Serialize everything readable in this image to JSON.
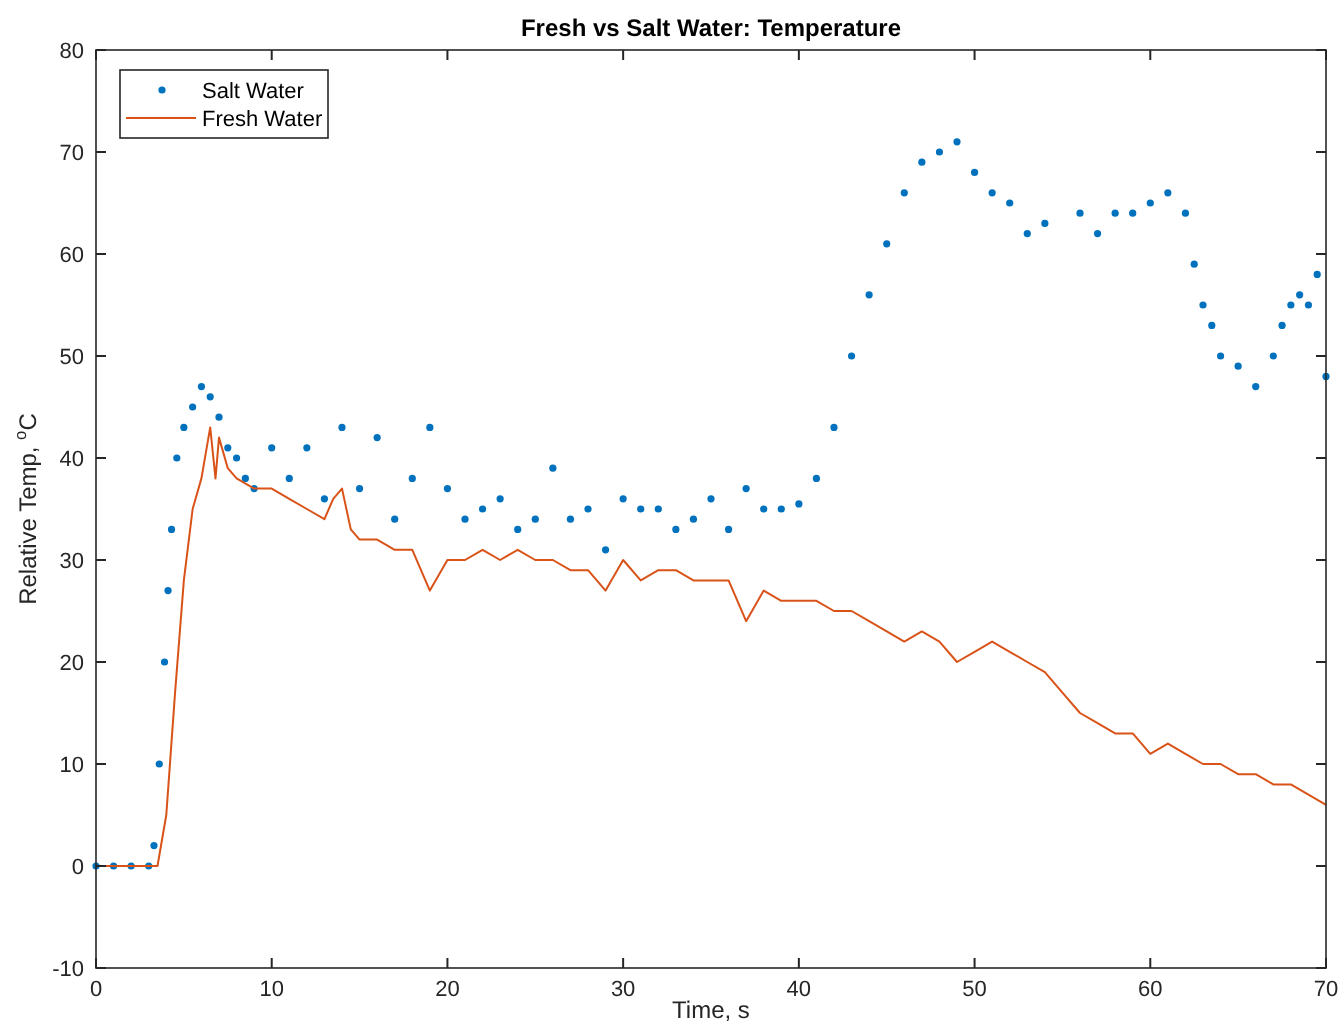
{
  "chart_data": {
    "type": "line",
    "title": "Fresh vs Salt Water: Temperature",
    "xlabel": "Time, s",
    "ylabel": "Relative Temp, $^{o}$C",
    "xlim": [
      0,
      70
    ],
    "xticks": [
      0,
      10,
      20,
      30,
      40,
      50,
      60,
      70
    ],
    "ylim": [
      -10,
      80
    ],
    "yticks": [
      -10,
      0,
      10,
      20,
      30,
      40,
      50,
      60,
      70,
      80
    ],
    "grid": false,
    "legend": "top left",
    "series": [
      {
        "name": "Salt Water",
        "type": "scatter",
        "marker": "circle",
        "color": "#0072bd",
        "x": [
          0,
          1,
          2,
          3,
          3.3,
          3.6,
          3.9,
          4.1,
          4.3,
          4.6,
          5,
          5.5,
          6,
          6.5,
          7,
          7.5,
          8,
          8.5,
          9,
          10,
          11,
          12,
          13,
          14,
          15,
          16,
          17,
          18,
          19,
          20,
          21,
          22,
          23,
          24,
          25,
          26,
          27,
          28,
          29,
          30,
          31,
          32,
          33,
          34,
          35,
          36,
          37,
          38,
          39,
          40,
          41,
          42,
          43,
          44,
          45,
          46,
          47,
          48,
          49,
          50,
          51,
          52,
          53,
          54,
          56,
          57,
          58,
          59,
          60,
          61,
          62,
          62.5,
          63,
          63.5,
          64,
          65,
          66,
          67,
          67.5,
          68,
          68.5,
          69,
          69.5,
          70
        ],
        "values": [
          0,
          0,
          0,
          0,
          2,
          10,
          20,
          27,
          33,
          40,
          43,
          45,
          47,
          46,
          44,
          41,
          40,
          38,
          37,
          41,
          38,
          41,
          36,
          43,
          37,
          42,
          34,
          38,
          43,
          37,
          34,
          35,
          36,
          33,
          34,
          39,
          34,
          35,
          31,
          36,
          35,
          35,
          33,
          34,
          36,
          33,
          37,
          35,
          35,
          35.5,
          38,
          43,
          50,
          56,
          61,
          66,
          69,
          70,
          71,
          68,
          66,
          65,
          62,
          63,
          64,
          62,
          64,
          64,
          65,
          66,
          64,
          59,
          55,
          53,
          50,
          49,
          47,
          50,
          53,
          55,
          56,
          55,
          58,
          48
        ]
      },
      {
        "name": "Fresh Water",
        "type": "line",
        "marker": "none",
        "color": "#d95319",
        "x": [
          0,
          1,
          2,
          3,
          3.5,
          4,
          4.5,
          5,
          5.5,
          6,
          6.5,
          6.8,
          7,
          7.5,
          8,
          9,
          10,
          11,
          12,
          13,
          13.5,
          14,
          14.5,
          15,
          16,
          17,
          18,
          19,
          20,
          21,
          22,
          23,
          24,
          25,
          26,
          27,
          28,
          29,
          30,
          31,
          32,
          33,
          34,
          35,
          36,
          37,
          38,
          39,
          40,
          41,
          42,
          43,
          44,
          45,
          46,
          47,
          48,
          49,
          50,
          51,
          52,
          53,
          54,
          55,
          56,
          57,
          58,
          59,
          60,
          61,
          62,
          63,
          64,
          65,
          66,
          67,
          68,
          69,
          70
        ],
        "values": [
          0,
          0,
          0,
          0,
          0,
          5,
          17,
          28,
          35,
          38,
          43,
          38,
          42,
          39,
          38,
          37,
          37,
          36,
          35,
          34,
          36,
          37,
          33,
          32,
          32,
          31,
          31,
          27,
          30,
          30,
          31,
          30,
          31,
          30,
          30,
          29,
          29,
          27,
          30,
          28,
          29,
          29,
          28,
          28,
          28,
          24,
          27,
          26,
          26,
          26,
          25,
          25,
          24,
          23,
          22,
          23,
          22,
          20,
          21,
          22,
          21,
          20,
          19,
          17,
          15,
          14,
          13,
          13,
          11,
          12,
          11,
          10,
          10,
          9,
          9,
          8,
          8,
          7,
          6
        ]
      }
    ]
  }
}
